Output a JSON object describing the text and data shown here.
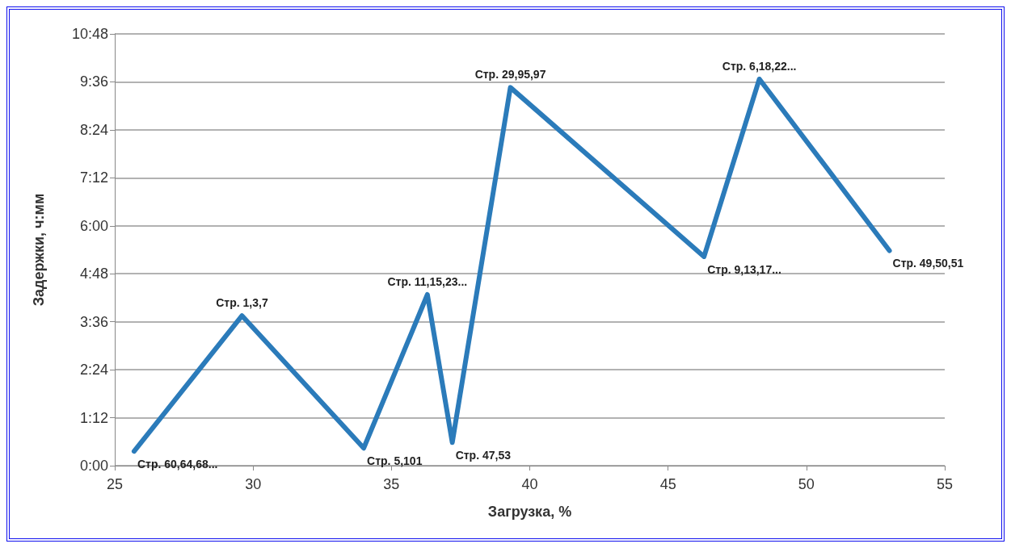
{
  "chart_data": {
    "type": "line",
    "xlabel": "Загрузка, %",
    "ylabel": "Задержки, ч:мм",
    "x": [
      25.7,
      29.6,
      34.0,
      36.3,
      37.2,
      39.3,
      46.3,
      48.3,
      53.0
    ],
    "series": [
      {
        "color": "#2b7bba",
        "values": [
          0.36,
          3.75,
          0.44,
          4.28,
          0.58,
          9.46,
          5.23,
          9.67,
          5.38
        ]
      }
    ],
    "annotations": [
      {
        "text": "Стр. 60,64,68...",
        "x": 25.7,
        "y": 0.36
      },
      {
        "text": "Стр. 1,3,7",
        "x": 29.6,
        "y": 3.75
      },
      {
        "text": "Стр. 5,101",
        "x": 34.0,
        "y": 0.44
      },
      {
        "text": "Стр. 11,15,23...",
        "x": 36.3,
        "y": 4.28
      },
      {
        "text": "Стр. 47,53",
        "x": 37.2,
        "y": 0.58
      },
      {
        "text": "Стр. 29,95,97",
        "x": 39.3,
        "y": 9.46
      },
      {
        "text": "Стр. 9,13,17...",
        "x": 46.3,
        "y": 5.23
      },
      {
        "text": "Стр. 6,18,22...",
        "x": 48.3,
        "y": 9.67
      },
      {
        "text": "Стр. 49,50,51",
        "x": 53.0,
        "y": 5.38
      }
    ],
    "xlim": [
      25,
      55
    ],
    "xticks": [
      25,
      30,
      35,
      40,
      45,
      50,
      55
    ],
    "ylim": [
      0,
      10.8
    ],
    "yticks": [
      {
        "value": 0,
        "label": "0:00"
      },
      {
        "value": 1.2,
        "label": "1:12"
      },
      {
        "value": 2.4,
        "label": "2:24"
      },
      {
        "value": 3.6,
        "label": "3:36"
      },
      {
        "value": 4.8,
        "label": "4:48"
      },
      {
        "value": 6,
        "label": "6:00"
      },
      {
        "value": 7.2,
        "label": "7:12"
      },
      {
        "value": 8.4,
        "label": "8:24"
      },
      {
        "value": 9.6,
        "label": "9:36"
      },
      {
        "value": 10.8,
        "label": "10:48"
      }
    ],
    "grid": "y",
    "marker": "none",
    "line_style": "solid"
  }
}
